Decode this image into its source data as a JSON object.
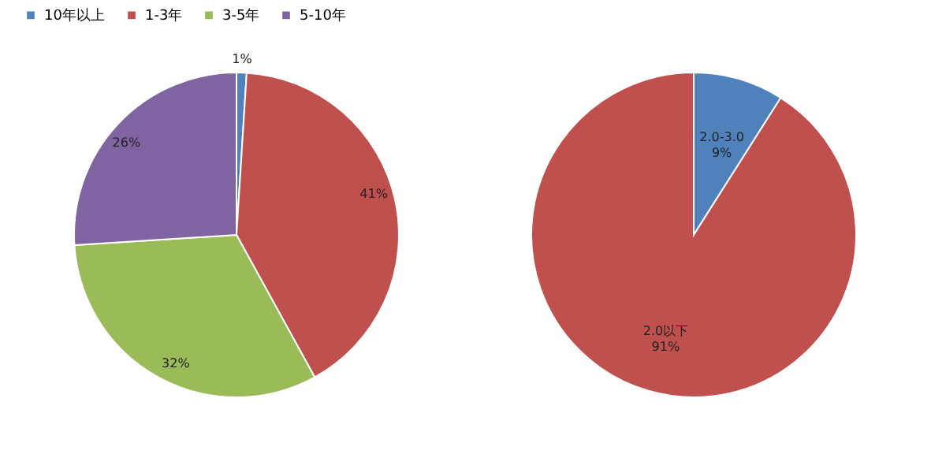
{
  "chart_data": [
    {
      "type": "pie",
      "categories": [
        "10年以上",
        "1-3年",
        "3-5年",
        "5-10年"
      ],
      "values": [
        1,
        41,
        32,
        26
      ],
      "colors": [
        "#4f81bd",
        "#c0504d",
        "#9bbb59",
        "#8064a2"
      ],
      "value_labels": [
        "1%",
        "41%",
        "32%",
        "26%"
      ],
      "legend": "top"
    },
    {
      "type": "pie",
      "categories": [
        "2.0-3.0",
        "2.0以下"
      ],
      "values": [
        9,
        91
      ],
      "colors": [
        "#4f81bd",
        "#c0504d"
      ],
      "value_labels": [
        "9%",
        "91%"
      ],
      "legend": false
    }
  ]
}
